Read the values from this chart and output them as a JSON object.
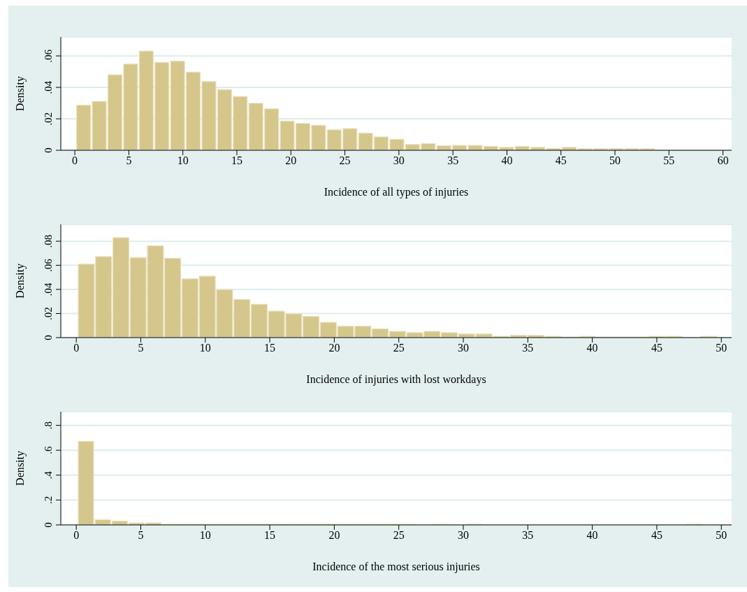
{
  "chart_data": [
    {
      "type": "histogram",
      "xlabel": "Incidence of all types of injuries",
      "ylabel": "Density",
      "color": "#d5c68c",
      "grid": "y",
      "bins": [
        0.1,
        1.55,
        3,
        4.45,
        5.9,
        7.35,
        8.8,
        10.25,
        11.7,
        13.15,
        14.6,
        16.05,
        17.5,
        18.95,
        20.4,
        21.85,
        23.3,
        24.75,
        26.2,
        27.65,
        29.1,
        30.55,
        32,
        33.45,
        34.9,
        36.35,
        37.8,
        39.25,
        40.7,
        42.15,
        43.6,
        45.05,
        46.5,
        47.95,
        49.4,
        50.85,
        52.3,
        53.75
      ],
      "values": [
        0.0287,
        0.0311,
        0.048,
        0.0548,
        0.0631,
        0.0559,
        0.0567,
        0.0497,
        0.0437,
        0.0386,
        0.0342,
        0.0299,
        0.0264,
        0.0186,
        0.0171,
        0.0159,
        0.013,
        0.0138,
        0.0109,
        0.0085,
        0.007,
        0.0037,
        0.0043,
        0.0029,
        0.0031,
        0.0031,
        0.0025,
        0.0019,
        0.0025,
        0.0019,
        0.0012,
        0.0019,
        0.001,
        0.001,
        0.001,
        0.001,
        0.001
      ],
      "xlim": [
        -1.3,
        60.8
      ],
      "xticks": [
        0,
        5,
        10,
        15,
        20,
        25,
        30,
        35,
        40,
        45,
        50,
        55,
        60
      ],
      "ylim": [
        0,
        0.072
      ],
      "yticks": [
        {
          "value": 0,
          "label": "0"
        },
        {
          "value": 0.02,
          "label": ".02"
        },
        {
          "value": 0.04,
          "label": ".04"
        },
        {
          "value": 0.06,
          "label": ".06"
        }
      ]
    },
    {
      "type": "histogram",
      "xlabel": "Incidence of injuries with lost workdays",
      "ylabel": "Density",
      "color": "#d5c68c",
      "grid": "y",
      "bins": [
        0.1,
        1.44,
        2.78,
        4.12,
        5.46,
        6.8,
        8.14,
        9.48,
        10.82,
        12.16,
        13.5,
        14.84,
        16.18,
        17.52,
        18.86,
        20.2,
        21.54,
        22.88,
        24.22,
        25.56,
        26.9,
        28.24,
        29.58,
        30.92,
        32.26,
        33.6,
        34.94,
        36.28,
        37.62,
        38.96,
        40.3,
        41.64,
        42.98,
        44.32,
        45.66,
        47,
        48.34,
        49.68
      ],
      "values": [
        0.061,
        0.0673,
        0.083,
        0.0664,
        0.0762,
        0.0659,
        0.0488,
        0.051,
        0.0399,
        0.0317,
        0.0277,
        0.022,
        0.0198,
        0.0176,
        0.0127,
        0.0095,
        0.0095,
        0.0073,
        0.0052,
        0.0041,
        0.0052,
        0.0041,
        0.003,
        0.003,
        0.0011,
        0.0019,
        0.0019,
        0.0011,
        0.0005,
        0.0011,
        0.0005,
        0.0005,
        0.0005,
        0.0011,
        0.0011,
        0,
        0.0011
      ],
      "xlim": [
        -1.2,
        50.8
      ],
      "xticks": [
        0,
        5,
        10,
        15,
        20,
        25,
        30,
        35,
        40,
        45,
        50
      ],
      "ylim": [
        0,
        0.094
      ],
      "yticks": [
        {
          "value": 0,
          "label": "0"
        },
        {
          "value": 0.02,
          "label": ".02"
        },
        {
          "value": 0.04,
          "label": ".04"
        },
        {
          "value": 0.06,
          "label": ".06"
        },
        {
          "value": 0.08,
          "label": ".08"
        }
      ]
    },
    {
      "type": "histogram",
      "xlabel": "Incidence of the most serious injuries",
      "ylabel": "Density",
      "color": "#d5c68c",
      "grid": "y",
      "bins": [
        0.1,
        1.41,
        2.72,
        4.03,
        5.34,
        6.65,
        7.96,
        9.27,
        10.58,
        11.89,
        13.2,
        14.51,
        15.82,
        17.13,
        18.44,
        19.75,
        21.06,
        22.37,
        23.68,
        24.99,
        26.3,
        27.61,
        28.92,
        30.23,
        31.54,
        32.85,
        34.16,
        35.47,
        36.78,
        38.09,
        39.4,
        40.71,
        42.02,
        43.33,
        44.64,
        45.95,
        47.26,
        48.57
      ],
      "values": [
        0.672,
        0.042,
        0.031,
        0.016,
        0.016,
        0.006,
        0.006,
        0.006,
        0.006,
        0.006,
        0.006,
        0.006,
        0.006,
        0.006,
        0.006,
        0.006,
        0.006,
        0.006,
        0.006,
        0.006,
        0,
        0.006,
        0,
        0.006,
        0,
        0,
        0,
        0,
        0,
        0,
        0,
        0,
        0,
        0,
        0,
        0,
        0.006
      ],
      "xlim": [
        -1.2,
        50.8
      ],
      "xticks": [
        0,
        5,
        10,
        15,
        20,
        25,
        30,
        35,
        40,
        45,
        50
      ],
      "ylim": [
        0,
        0.91
      ],
      "yticks": [
        {
          "value": 0,
          "label": "0"
        },
        {
          "value": 0.2,
          "label": ".2"
        },
        {
          "value": 0.4,
          "label": ".4"
        },
        {
          "value": 0.6,
          "label": ".6"
        },
        {
          "value": 0.8,
          "label": ".8"
        }
      ]
    }
  ]
}
